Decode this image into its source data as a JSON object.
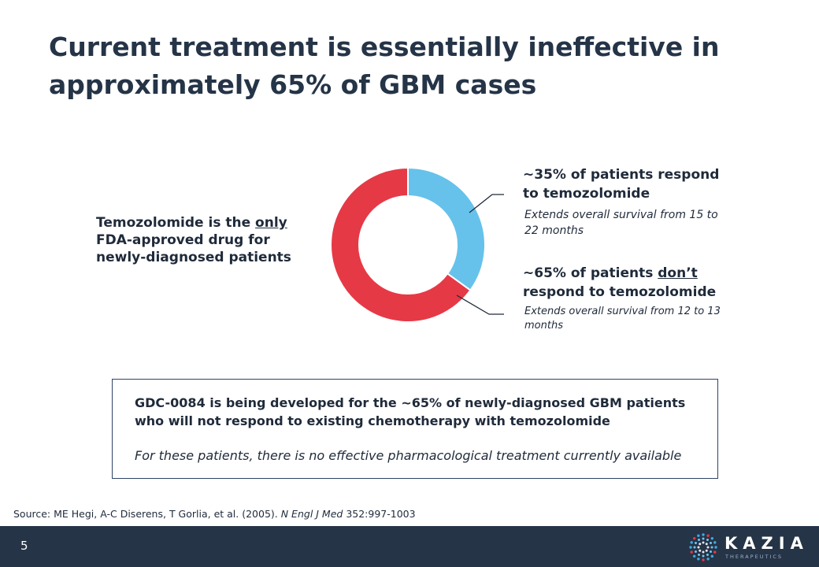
{
  "title": "Current treatment is essentially ineffective in approximately 65% of GBM cases",
  "left_text": {
    "pre": "Temozolomide is the ",
    "underlined": "only",
    "post": " FDA-approved drug for newly-diagnosed patients"
  },
  "callouts": {
    "respond": {
      "headline": "~35% of patients respond to temozolomide",
      "detail": "Extends overall survival from 15 to 22 months"
    },
    "no_respond": {
      "headline_pre": "~65% of patients ",
      "headline_underlined": "don’t",
      "headline_post": " respond to temozolomide",
      "detail": "Extends overall survival from 12 to 13 months"
    }
  },
  "chart_data": {
    "type": "pie",
    "donut": true,
    "categories": [
      "Respond to temozolomide",
      "Don’t respond to temozolomide"
    ],
    "values": [
      35,
      65
    ],
    "colors": [
      "#66c2ea",
      "#e63946"
    ]
  },
  "box": {
    "main": "GDC-0084 is being developed for the ~65% of newly-diagnosed GBM patients who will not respond to existing chemotherapy with temozolomide",
    "italic": "For these patients, there is no effective pharmacological treatment currently available"
  },
  "source": {
    "pre": "Source: ME Hegi, A-C Diserens, T Gorlia, et al. (2005). ",
    "journal": "N Engl J Med",
    "post": " 352:997-1003"
  },
  "footer": {
    "page_number": "5",
    "logo_text": "KAZIA",
    "logo_sub": "THERAPEUTICS"
  },
  "colors": {
    "footer_bg": "#263447",
    "title": "#253447",
    "box_border": "#2d4466"
  }
}
